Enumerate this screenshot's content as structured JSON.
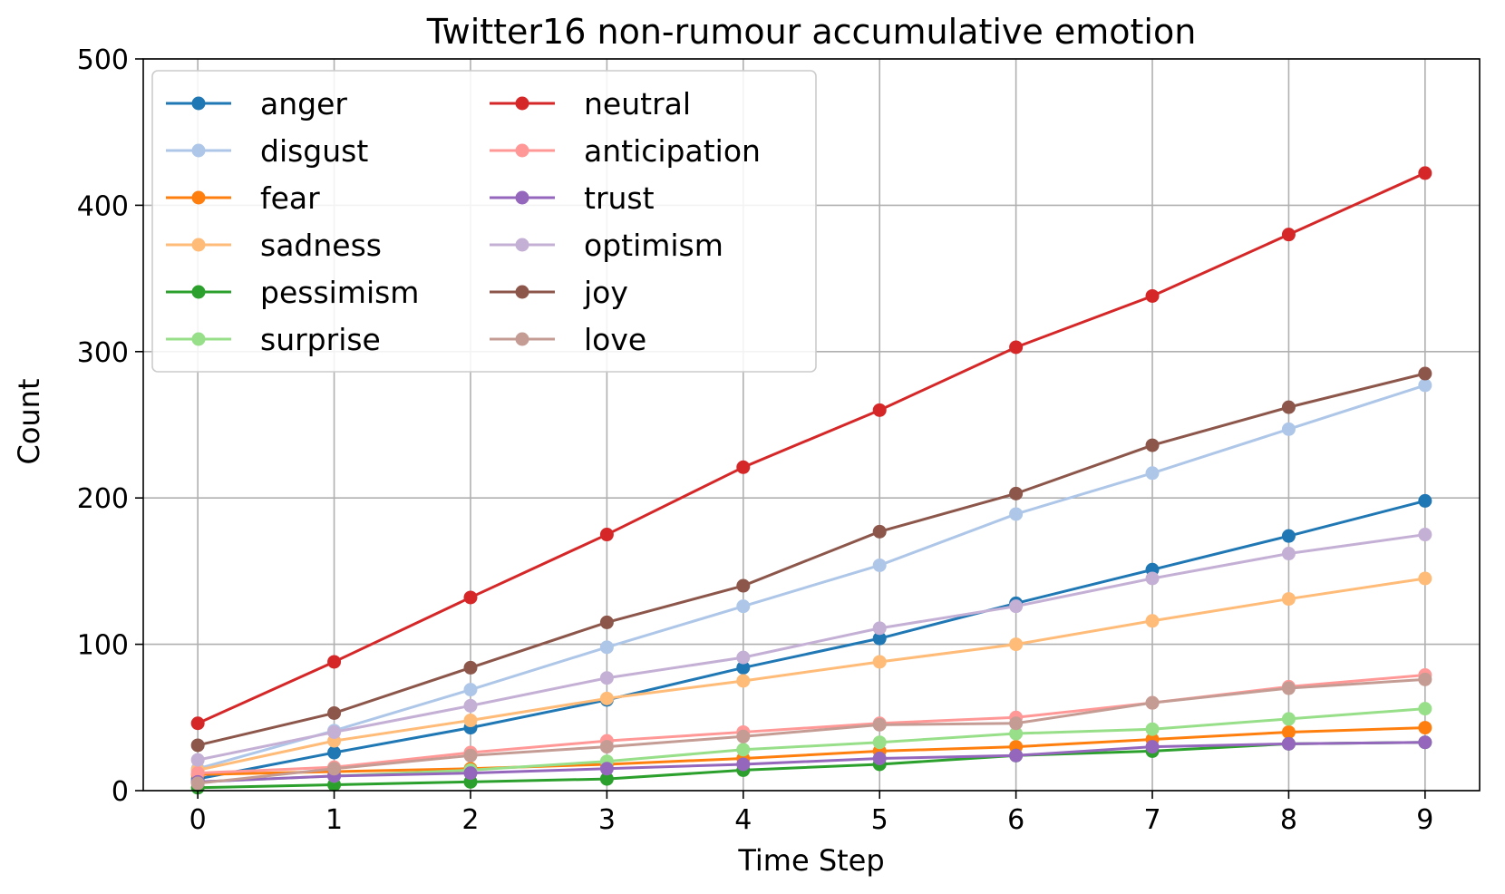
{
  "chart_data": {
    "type": "line",
    "title": "Twitter16 non-rumour accumulative emotion",
    "xlabel": "Time Step",
    "ylabel": "Count",
    "x": [
      0,
      1,
      2,
      3,
      4,
      5,
      6,
      7,
      8,
      9
    ],
    "xlim": [
      -0.4,
      9.4
    ],
    "ylim": [
      0,
      500
    ],
    "xticks": [
      "0",
      "1",
      "2",
      "3",
      "4",
      "5",
      "6",
      "7",
      "8",
      "9"
    ],
    "yticks": [
      0,
      100,
      200,
      300,
      400,
      500
    ],
    "grid": true,
    "legend": {
      "placement": "upper-left",
      "columns": 2
    },
    "series": [
      {
        "name": "anger",
        "color": "#1f77b4",
        "values": [
          8,
          26,
          43,
          62,
          84,
          104,
          128,
          151,
          174,
          198
        ]
      },
      {
        "name": "disgust",
        "color": "#aec7e8",
        "values": [
          15,
          41,
          69,
          98,
          126,
          154,
          189,
          217,
          247,
          277
        ]
      },
      {
        "name": "fear",
        "color": "#ff7f0e",
        "values": [
          11,
          13,
          15,
          18,
          22,
          27,
          30,
          35,
          40,
          43
        ]
      },
      {
        "name": "sadness",
        "color": "#ffbb78",
        "values": [
          14,
          34,
          48,
          63,
          75,
          88,
          100,
          116,
          131,
          145
        ]
      },
      {
        "name": "pessimism",
        "color": "#2ca02c",
        "values": [
          2,
          4,
          6,
          8,
          14,
          18,
          24,
          27,
          32,
          33
        ]
      },
      {
        "name": "surprise",
        "color": "#98df8a",
        "values": [
          6,
          10,
          14,
          20,
          28,
          33,
          39,
          42,
          49,
          56
        ]
      },
      {
        "name": "neutral",
        "color": "#d62728",
        "values": [
          46,
          88,
          132,
          175,
          221,
          260,
          303,
          338,
          380,
          422
        ]
      },
      {
        "name": "anticipation",
        "color": "#ff9896",
        "values": [
          12,
          16,
          26,
          34,
          40,
          46,
          50,
          60,
          71,
          79
        ]
      },
      {
        "name": "trust",
        "color": "#9467bd",
        "values": [
          6,
          10,
          12,
          15,
          18,
          22,
          24,
          30,
          32,
          33
        ]
      },
      {
        "name": "optimism",
        "color": "#c5b0d5",
        "values": [
          21,
          40,
          58,
          77,
          91,
          111,
          126,
          145,
          162,
          175
        ]
      },
      {
        "name": "joy",
        "color": "#8c564b",
        "values": [
          31,
          53,
          84,
          115,
          140,
          177,
          203,
          236,
          262,
          285
        ]
      },
      {
        "name": "love",
        "color": "#c49c94",
        "values": [
          5,
          15,
          24,
          30,
          37,
          45,
          46,
          60,
          70,
          76
        ]
      }
    ]
  }
}
